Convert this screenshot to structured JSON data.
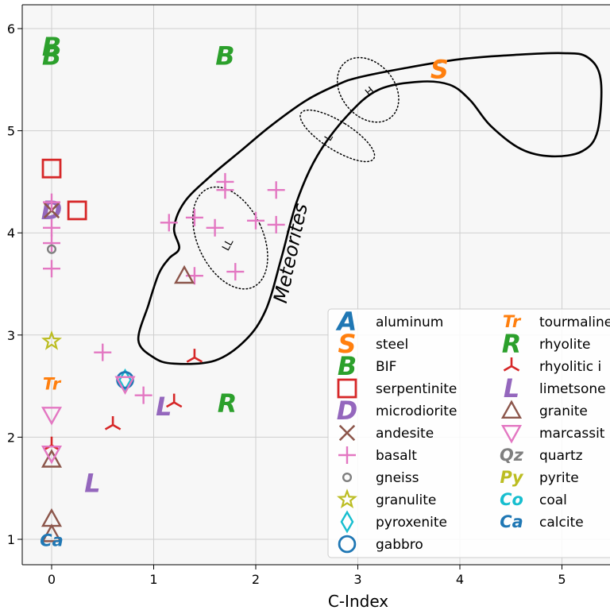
{
  "chart_data": {
    "type": "scatter",
    "xlabel": "C-Index",
    "ylabel": "",
    "xlim": [
      -0.3,
      5.5
    ],
    "ylim": [
      0.75,
      6.15
    ],
    "xticks": [
      0,
      1,
      2,
      3,
      4,
      5
    ],
    "yticks": [
      1,
      2,
      3,
      4,
      5,
      6
    ],
    "grid": true,
    "legend_position": "lower-right",
    "colors": {
      "blue": "#1f77b4",
      "orange": "#ff7f0e",
      "green": "#2ca02c",
      "red": "#d62728",
      "purple": "#9467bd",
      "brown": "#8c564b",
      "pink": "#e377c2",
      "gray": "#7f7f7f",
      "olive": "#bcbd22",
      "cyan": "#17becf"
    },
    "series": [
      {
        "name": "aluminum",
        "marker": "letter",
        "glyph": "A",
        "color": "#1f77b4",
        "points": []
      },
      {
        "name": "steel",
        "marker": "letter",
        "glyph": "S",
        "color": "#ff7f0e",
        "points": [
          [
            3.8,
            5.6
          ]
        ]
      },
      {
        "name": "BIF",
        "marker": "letter",
        "glyph": "B",
        "color": "#2ca02c",
        "points": [
          [
            0.0,
            5.82
          ],
          [
            0.0,
            5.73
          ],
          [
            1.7,
            5.73
          ]
        ]
      },
      {
        "name": "serpentinite",
        "marker": "square",
        "color": "#d62728",
        "points": [
          [
            0.0,
            4.63
          ],
          [
            0.25,
            4.22
          ]
        ]
      },
      {
        "name": "microdiorite",
        "marker": "letter",
        "glyph": "D",
        "color": "#9467bd",
        "points": [
          [
            0.0,
            4.22
          ]
        ]
      },
      {
        "name": "andesite",
        "marker": "x",
        "color": "#8c564b",
        "points": [
          [
            0.0,
            4.22
          ]
        ]
      },
      {
        "name": "basalt",
        "marker": "plus",
        "color": "#e377c2",
        "points": [
          [
            0.0,
            4.3
          ],
          [
            0.0,
            4.05
          ],
          [
            0.0,
            3.9
          ],
          [
            0.0,
            3.65
          ],
          [
            0.5,
            2.83
          ],
          [
            0.9,
            2.41
          ],
          [
            1.15,
            4.1
          ],
          [
            1.4,
            4.15
          ],
          [
            1.6,
            4.05
          ],
          [
            1.7,
            4.5
          ],
          [
            1.7,
            4.42
          ],
          [
            2.0,
            4.12
          ],
          [
            2.2,
            4.42
          ],
          [
            2.2,
            4.08
          ],
          [
            1.8,
            3.62
          ],
          [
            1.4,
            3.58
          ]
        ]
      },
      {
        "name": "gneiss",
        "marker": "circle-small",
        "color": "#7f7f7f",
        "points": [
          [
            0.0,
            3.84
          ]
        ]
      },
      {
        "name": "granulite",
        "marker": "star",
        "color": "#bcbd22",
        "points": [
          [
            0.0,
            2.94
          ]
        ]
      },
      {
        "name": "pyroxenite",
        "marker": "diamond",
        "color": "#17becf",
        "points": [
          [
            0.72,
            2.56
          ]
        ]
      },
      {
        "name": "gabbro",
        "marker": "circle",
        "color": "#1f77b4",
        "points": [
          [
            0.72,
            2.56
          ]
        ]
      },
      {
        "name": "tourmaline",
        "marker": "letter",
        "glyph": "Tr",
        "color": "#ff7f0e",
        "points": [
          [
            0.0,
            2.52
          ]
        ]
      },
      {
        "name": "rhyolite",
        "marker": "letter",
        "glyph": "R",
        "color": "#2ca02c",
        "points": [
          [
            1.72,
            2.33
          ]
        ]
      },
      {
        "name": "rhyolitic i",
        "marker": "tri",
        "color": "#d62728",
        "points": [
          [
            0.0,
            1.92
          ],
          [
            0.6,
            2.12
          ],
          [
            1.2,
            2.34
          ],
          [
            1.4,
            2.78
          ]
        ]
      },
      {
        "name": "limetsone",
        "marker": "letter",
        "glyph": "L",
        "color": "#9467bd",
        "points": [
          [
            1.1,
            2.3
          ],
          [
            0.4,
            1.55
          ]
        ]
      },
      {
        "name": "granite",
        "marker": "triangle-up",
        "color": "#8c564b",
        "points": [
          [
            1.3,
            3.58
          ],
          [
            0.0,
            1.78
          ],
          [
            0.0,
            1.2
          ],
          [
            0.0,
            1.05
          ]
        ]
      },
      {
        "name": "marcassit",
        "marker": "triangle-down",
        "color": "#e377c2",
        "points": [
          [
            0.0,
            2.22
          ],
          [
            0.0,
            1.84
          ],
          [
            0.72,
            2.52
          ]
        ]
      },
      {
        "name": "quartz",
        "marker": "letter",
        "glyph": "Qz",
        "color": "#7f7f7f",
        "points": []
      },
      {
        "name": "pyrite",
        "marker": "letter",
        "glyph": "Py",
        "color": "#bcbd22",
        "points": []
      },
      {
        "name": "coal",
        "marker": "letter",
        "glyph": "Co",
        "color": "#17becf",
        "points": []
      },
      {
        "name": "calcite",
        "marker": "letter",
        "glyph": "Ca",
        "color": "#1f77b4",
        "points": [
          [
            0.0,
            0.99
          ]
        ]
      }
    ],
    "regions": [
      {
        "name": "Meteorites",
        "style": "solid",
        "label_at": [
          2.35,
          3.8
        ],
        "label_rotation": -78,
        "polygon": [
          [
            3.0,
            5.52
          ],
          [
            3.5,
            5.62
          ],
          [
            4.0,
            5.7
          ],
          [
            4.5,
            5.74
          ],
          [
            5.0,
            5.76
          ],
          [
            5.25,
            5.72
          ],
          [
            5.38,
            5.5
          ],
          [
            5.35,
            5.0
          ],
          [
            5.2,
            4.8
          ],
          [
            4.9,
            4.75
          ],
          [
            4.6,
            4.82
          ],
          [
            4.3,
            5.05
          ],
          [
            4.1,
            5.3
          ],
          [
            3.9,
            5.45
          ],
          [
            3.6,
            5.48
          ],
          [
            3.2,
            5.4
          ],
          [
            2.9,
            5.15
          ],
          [
            2.6,
            4.75
          ],
          [
            2.4,
            4.3
          ],
          [
            2.25,
            3.75
          ],
          [
            2.1,
            3.25
          ],
          [
            1.9,
            2.95
          ],
          [
            1.6,
            2.75
          ],
          [
            1.2,
            2.72
          ],
          [
            1.0,
            2.78
          ],
          [
            0.85,
            2.95
          ],
          [
            0.95,
            3.3
          ],
          [
            1.05,
            3.6
          ],
          [
            1.15,
            3.75
          ],
          [
            1.25,
            3.85
          ],
          [
            1.2,
            4.05
          ],
          [
            1.3,
            4.3
          ],
          [
            1.55,
            4.55
          ],
          [
            1.85,
            4.8
          ],
          [
            2.15,
            5.05
          ],
          [
            2.5,
            5.3
          ],
          [
            2.8,
            5.45
          ]
        ]
      },
      {
        "name": "LL",
        "style": "dotted",
        "ellipse": {
          "cx": 1.75,
          "cy": 3.95,
          "rx": 0.32,
          "ry": 0.53,
          "rotate": -25
        },
        "label_at": [
          1.73,
          3.88
        ],
        "label_rotation": -62
      },
      {
        "name": "H",
        "style": "dotted",
        "ellipse": {
          "cx": 3.1,
          "cy": 5.4,
          "rx": 0.26,
          "ry": 0.35,
          "rotate": -40
        },
        "label_at": [
          3.12,
          5.38
        ],
        "label_rotation": -40
      },
      {
        "name": "L",
        "style": "dotted",
        "ellipse": {
          "cx": 2.8,
          "cy": 4.95,
          "rx": 0.14,
          "ry": 0.42,
          "rotate": -58
        },
        "label_at": [
          2.72,
          4.93
        ],
        "label_rotation": -58
      }
    ]
  }
}
